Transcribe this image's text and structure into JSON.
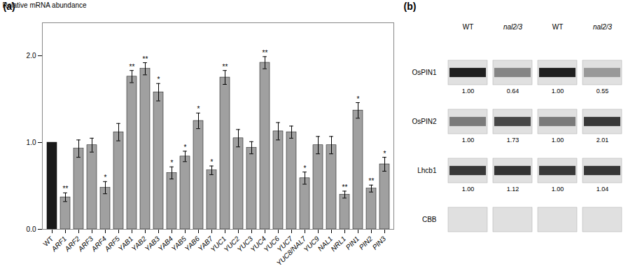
{
  "chart_data": [
    {
      "type": "bar",
      "title": "(a)",
      "categories": [
        "WT",
        "ARF1",
        "ARF2",
        "ARF3",
        "ARF4",
        "ARF5",
        "YAB1",
        "YAB2",
        "YAB3",
        "YAB4",
        "YAB5",
        "YAB6",
        "YAB7",
        "YUC1",
        "YUC2",
        "YUC3",
        "YUC4",
        "YUC6",
        "YUC7",
        "YUC8/NAL7",
        "YUC9",
        "NAL1",
        "NRL1",
        "PIN1",
        "PIN2",
        "PIN3"
      ],
      "values": [
        1.0,
        0.37,
        0.93,
        0.97,
        0.48,
        1.12,
        1.76,
        1.85,
        1.58,
        0.65,
        0.84,
        1.25,
        0.68,
        1.75,
        1.05,
        0.94,
        1.92,
        1.13,
        1.12,
        0.59,
        0.97,
        0.97,
        0.4,
        1.37,
        0.47,
        0.75
      ],
      "errors": [
        0.0,
        0.05,
        0.1,
        0.08,
        0.07,
        0.1,
        0.07,
        0.07,
        0.1,
        0.07,
        0.06,
        0.09,
        0.05,
        0.08,
        0.1,
        0.07,
        0.07,
        0.1,
        0.07,
        0.07,
        0.1,
        0.1,
        0.04,
        0.09,
        0.04,
        0.08
      ],
      "significance": [
        null,
        "**",
        null,
        null,
        "*",
        null,
        "**",
        "**",
        "*",
        "*",
        "*",
        "*",
        "*",
        "**",
        null,
        null,
        "**",
        null,
        null,
        "*",
        null,
        null,
        "**",
        "*",
        "**",
        "*"
      ],
      "colors": [
        "#1a1a1a",
        "#a0a0a0",
        "#a0a0a0",
        "#a0a0a0",
        "#a0a0a0",
        "#a0a0a0",
        "#a0a0a0",
        "#a0a0a0",
        "#a0a0a0",
        "#a0a0a0",
        "#a0a0a0",
        "#a0a0a0",
        "#a0a0a0",
        "#a0a0a0",
        "#a0a0a0",
        "#a0a0a0",
        "#a0a0a0",
        "#a0a0a0",
        "#a0a0a0",
        "#a0a0a0",
        "#a0a0a0",
        "#a0a0a0",
        "#a0a0a0",
        "#a0a0a0",
        "#a0a0a0",
        "#a0a0a0"
      ],
      "ylabel": "Relative mRNA abundance",
      "ylim": [
        0,
        2.38
      ],
      "yticks": [
        0,
        1,
        2
      ]
    },
    {
      "type": "blot",
      "title": "(b)",
      "categories": [
        "WT",
        "nal2/3",
        "WT",
        "nal2/3"
      ],
      "rows": [
        "OsPIN1",
        "OsPIN2",
        "Lhcb1",
        "CBB"
      ],
      "values": [
        [
          1.0,
          0.64,
          1.0,
          0.55
        ],
        [
          1.0,
          1.73,
          1.0,
          2.01
        ],
        [
          1.0,
          1.12,
          1.0,
          1.04
        ],
        [
          null,
          null,
          null,
          null
        ]
      ],
      "value_labels": [
        [
          "1.00",
          "0.64",
          "1.00",
          "0.55"
        ],
        [
          "1.00",
          "1.73",
          "1.00",
          "2.01"
        ],
        [
          "1.00",
          "1.12",
          "1.00",
          "1.04"
        ],
        [
          null,
          null,
          null,
          null
        ]
      ],
      "colors": [
        [
          "#1f1f1f",
          "#858585",
          "#1f1f1f",
          "#999999"
        ],
        [
          "#7a7a7a",
          "#474747",
          "#7a7a7a",
          "#383838"
        ],
        [
          "#383838",
          "#333333",
          "#383838",
          "#363636"
        ],
        [
          null,
          null,
          null,
          null
        ]
      ]
    }
  ]
}
